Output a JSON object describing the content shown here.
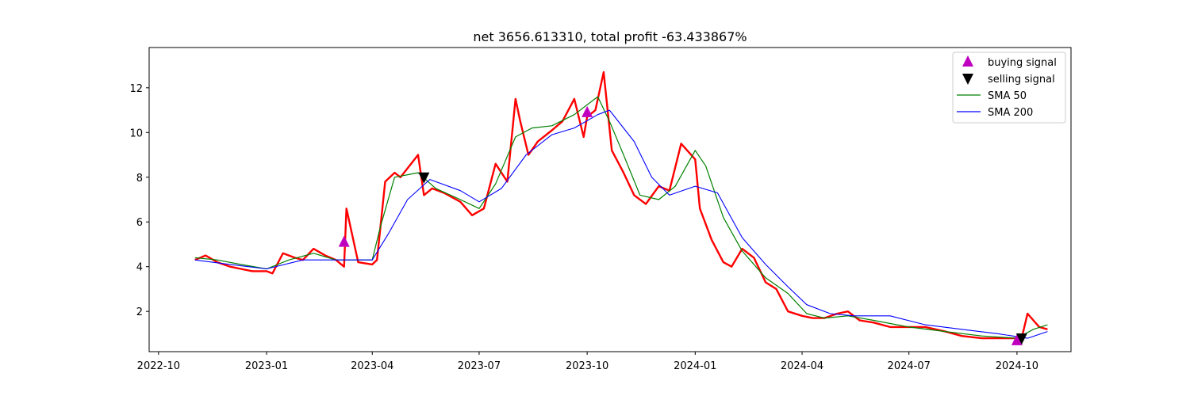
{
  "chart_data": {
    "type": "line",
    "title": "net 3656.613310, total profit -63.433867%",
    "xlabel": "",
    "ylabel": "",
    "x_ticks": [
      "2022-10",
      "2023-01",
      "2023-04",
      "2023-07",
      "2023-10",
      "2024-01",
      "2024-04",
      "2024-07",
      "2024-10"
    ],
    "y_ticks": [
      2,
      4,
      6,
      8,
      10,
      12
    ],
    "xlim": [
      "2022-09-23",
      "2024-11-16"
    ],
    "ylim": [
      0.2,
      13.8
    ],
    "grid": false,
    "legend_position": "top-right",
    "colors": {
      "price": "#ff0000",
      "sma50": "#008000",
      "sma200": "#0000ff",
      "buy": "#bf00bf",
      "sell": "#000000"
    },
    "legend": [
      {
        "label": "buying signal",
        "kind": "buy"
      },
      {
        "label": "selling signal",
        "kind": "sell"
      },
      {
        "label": "SMA 50",
        "kind": "sma50"
      },
      {
        "label": "SMA 200",
        "kind": "sma200"
      }
    ],
    "series": [
      {
        "name": "close",
        "dates": [
          "2022-11-01",
          "2022-11-10",
          "2022-11-20",
          "2022-12-01",
          "2022-12-10",
          "2022-12-20",
          "2023-01-01",
          "2023-01-06",
          "2023-01-15",
          "2023-01-25",
          "2023-02-01",
          "2023-02-10",
          "2023-02-20",
          "2023-03-01",
          "2023-03-08",
          "2023-03-10",
          "2023-03-20",
          "2023-04-01",
          "2023-04-05",
          "2023-04-12",
          "2023-04-20",
          "2023-04-25",
          "2023-05-01",
          "2023-05-10",
          "2023-05-15",
          "2023-05-22",
          "2023-06-01",
          "2023-06-15",
          "2023-06-25",
          "2023-07-05",
          "2023-07-15",
          "2023-07-25",
          "2023-08-01",
          "2023-08-05",
          "2023-08-12",
          "2023-08-20",
          "2023-09-01",
          "2023-09-10",
          "2023-09-20",
          "2023-09-28",
          "2023-10-01",
          "2023-10-08",
          "2023-10-15",
          "2023-10-22",
          "2023-11-01",
          "2023-11-10",
          "2023-11-20",
          "2023-12-01",
          "2023-12-10",
          "2023-12-20",
          "2024-01-01",
          "2024-01-05",
          "2024-01-15",
          "2024-01-25",
          "2024-02-01",
          "2024-02-10",
          "2024-02-20",
          "2024-03-01",
          "2024-03-10",
          "2024-03-20",
          "2024-04-01",
          "2024-04-10",
          "2024-04-20",
          "2024-05-01",
          "2024-05-10",
          "2024-05-20",
          "2024-06-01",
          "2024-06-15",
          "2024-07-01",
          "2024-07-15",
          "2024-08-01",
          "2024-08-15",
          "2024-09-01",
          "2024-09-15",
          "2024-10-01",
          "2024-10-05",
          "2024-10-10",
          "2024-10-15",
          "2024-10-20",
          "2024-10-27"
        ],
        "values": [
          4.3,
          4.5,
          4.2,
          4.0,
          3.9,
          3.8,
          3.8,
          3.7,
          4.6,
          4.4,
          4.3,
          4.8,
          4.5,
          4.3,
          4.0,
          6.6,
          4.2,
          4.1,
          4.3,
          7.8,
          8.2,
          8.0,
          8.4,
          9.0,
          7.2,
          7.5,
          7.3,
          6.9,
          6.3,
          6.6,
          8.6,
          7.8,
          11.5,
          10.5,
          9.0,
          9.6,
          10.1,
          10.5,
          11.5,
          9.8,
          10.7,
          11.0,
          12.7,
          9.2,
          8.2,
          7.2,
          6.8,
          7.6,
          7.4,
          9.5,
          8.8,
          6.6,
          5.2,
          4.2,
          4.0,
          4.8,
          4.4,
          3.3,
          3.0,
          2.0,
          1.8,
          1.7,
          1.7,
          1.9,
          2.0,
          1.6,
          1.5,
          1.3,
          1.3,
          1.3,
          1.1,
          0.9,
          0.8,
          0.8,
          0.8,
          0.8,
          1.9,
          1.6,
          1.3,
          1.2
        ]
      },
      {
        "name": "SMA 50",
        "dates": [
          "2022-11-01",
          "2022-11-20",
          "2022-12-10",
          "2023-01-01",
          "2023-01-20",
          "2023-02-10",
          "2023-03-01",
          "2023-03-15",
          "2023-04-01",
          "2023-04-08",
          "2023-04-20",
          "2023-05-10",
          "2023-05-25",
          "2023-06-15",
          "2023-07-01",
          "2023-07-15",
          "2023-08-01",
          "2023-08-15",
          "2023-09-01",
          "2023-09-20",
          "2023-10-10",
          "2023-10-20",
          "2023-11-01",
          "2023-11-15",
          "2023-12-01",
          "2023-12-15",
          "2024-01-01",
          "2024-01-10",
          "2024-01-25",
          "2024-02-10",
          "2024-03-01",
          "2024-03-20",
          "2024-04-05",
          "2024-04-20",
          "2024-05-10",
          "2024-06-01",
          "2024-07-01",
          "2024-08-01",
          "2024-09-01",
          "2024-10-01",
          "2024-10-15",
          "2024-10-27"
        ],
        "values": [
          4.4,
          4.3,
          4.1,
          3.9,
          4.3,
          4.6,
          4.3,
          4.3,
          4.3,
          5.8,
          8.0,
          8.2,
          7.5,
          7.0,
          6.6,
          7.7,
          9.8,
          10.2,
          10.3,
          10.8,
          11.6,
          10.5,
          9.0,
          7.2,
          7.0,
          7.6,
          9.2,
          8.5,
          6.2,
          4.7,
          3.5,
          2.8,
          1.9,
          1.7,
          1.8,
          1.6,
          1.3,
          1.1,
          0.9,
          0.8,
          1.2,
          1.4
        ]
      },
      {
        "name": "SMA 200",
        "dates": [
          "2022-11-01",
          "2022-12-01",
          "2023-01-01",
          "2023-02-01",
          "2023-03-01",
          "2023-04-01",
          "2023-04-15",
          "2023-05-01",
          "2023-05-20",
          "2023-06-15",
          "2023-07-01",
          "2023-07-20",
          "2023-08-10",
          "2023-09-01",
          "2023-09-20",
          "2023-10-10",
          "2023-10-20",
          "2023-11-10",
          "2023-11-25",
          "2023-12-10",
          "2024-01-01",
          "2024-01-20",
          "2024-02-10",
          "2024-03-01",
          "2024-03-20",
          "2024-04-05",
          "2024-04-25",
          "2024-05-15",
          "2024-06-15",
          "2024-07-15",
          "2024-08-15",
          "2024-09-15",
          "2024-10-10",
          "2024-10-27"
        ],
        "values": [
          4.3,
          4.1,
          3.9,
          4.3,
          4.3,
          4.3,
          5.5,
          7.0,
          7.9,
          7.4,
          6.9,
          7.5,
          9.0,
          9.9,
          10.2,
          10.8,
          11.0,
          9.6,
          8.0,
          7.2,
          7.6,
          7.3,
          5.3,
          4.1,
          3.1,
          2.3,
          1.9,
          1.8,
          1.8,
          1.4,
          1.2,
          1.0,
          0.8,
          1.1
        ]
      }
    ],
    "buy_signals": [
      {
        "date": "2023-03-08",
        "value": 5.1
      },
      {
        "date": "2023-10-01",
        "value": 10.9
      },
      {
        "date": "2024-10-01",
        "value": 0.7
      }
    ],
    "sell_signals": [
      {
        "date": "2023-05-15",
        "value": 8.0
      },
      {
        "date": "2024-10-05",
        "value": 0.8
      }
    ]
  }
}
